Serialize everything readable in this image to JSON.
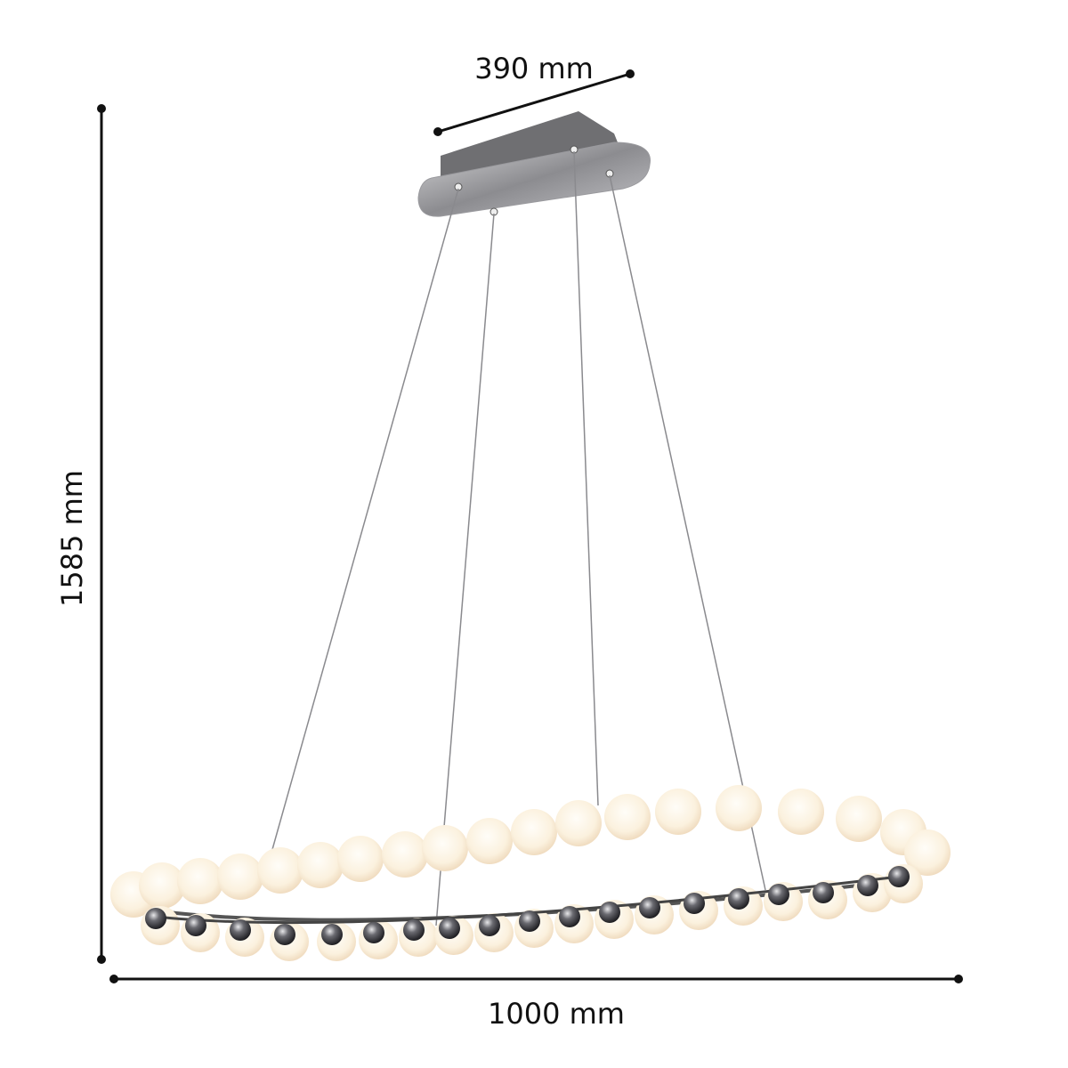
{
  "dimensions": {
    "depth_label": "390 mm",
    "height_label": "1585 mm",
    "width_label": "1000 mm"
  },
  "colors": {
    "line": "#111111",
    "canopy": "#6f6f72",
    "sphere_glow": "#fff6e6",
    "chrome": "#3a3a3e"
  }
}
